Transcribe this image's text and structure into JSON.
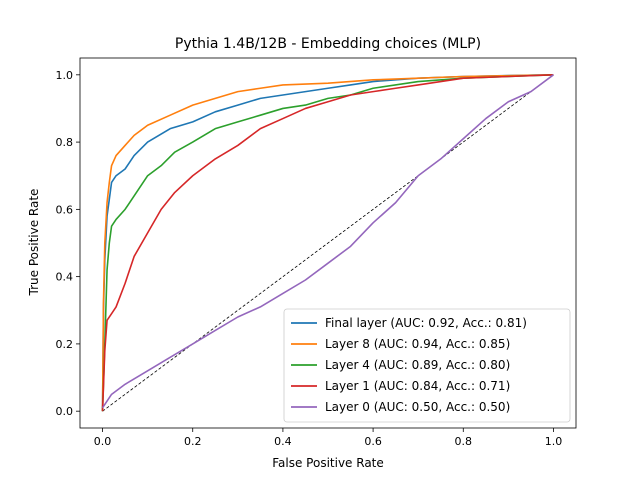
{
  "chart_data": {
    "type": "line",
    "title": "Pythia 1.4B/12B - Embedding choices (MLP)",
    "xlabel": "False Positive Rate",
    "ylabel": "True Positive Rate",
    "xlim": [
      -0.05,
      1.05
    ],
    "ylim": [
      -0.05,
      1.05
    ],
    "xticks": [
      0.0,
      0.2,
      0.4,
      0.6,
      0.8,
      1.0
    ],
    "yticks": [
      0.0,
      0.2,
      0.4,
      0.6,
      0.8,
      1.0
    ],
    "tick_labels": [
      "0.0",
      "0.2",
      "0.4",
      "0.6",
      "0.8",
      "1.0"
    ],
    "grid": false,
    "legend_position": "lower-right",
    "diagonal": {
      "x": [
        0,
        1
      ],
      "y": [
        0,
        1
      ],
      "color": "#000000",
      "style": "dashed"
    },
    "series": [
      {
        "name": "Final layer (AUC: 0.92, Acc.: 0.81)",
        "color": "#1f77b4",
        "x": [
          0,
          0.002,
          0.005,
          0.01,
          0.015,
          0.02,
          0.03,
          0.05,
          0.07,
          0.1,
          0.15,
          0.2,
          0.25,
          0.3,
          0.35,
          0.4,
          0.45,
          0.5,
          0.55,
          0.6,
          0.65,
          0.7,
          0.8,
          0.9,
          1.0
        ],
        "y": [
          0,
          0.3,
          0.45,
          0.58,
          0.63,
          0.68,
          0.7,
          0.72,
          0.76,
          0.8,
          0.84,
          0.86,
          0.89,
          0.91,
          0.93,
          0.94,
          0.95,
          0.96,
          0.97,
          0.98,
          0.985,
          0.99,
          0.995,
          0.998,
          1.0
        ]
      },
      {
        "name": "Layer 8 (AUC: 0.94, Acc.: 0.85)",
        "color": "#ff7f0e",
        "x": [
          0,
          0.002,
          0.005,
          0.01,
          0.015,
          0.02,
          0.03,
          0.05,
          0.07,
          0.1,
          0.15,
          0.2,
          0.25,
          0.3,
          0.35,
          0.4,
          0.5,
          0.6,
          0.7,
          0.8,
          1.0
        ],
        "y": [
          0,
          0.32,
          0.5,
          0.62,
          0.68,
          0.73,
          0.76,
          0.79,
          0.82,
          0.85,
          0.88,
          0.91,
          0.93,
          0.95,
          0.96,
          0.97,
          0.975,
          0.985,
          0.99,
          0.995,
          1.0
        ]
      },
      {
        "name": "Layer 4 (AUC: 0.89, Acc.: 0.80)",
        "color": "#2ca02c",
        "x": [
          0,
          0.005,
          0.01,
          0.015,
          0.02,
          0.03,
          0.05,
          0.07,
          0.1,
          0.13,
          0.16,
          0.2,
          0.25,
          0.3,
          0.35,
          0.4,
          0.45,
          0.5,
          0.55,
          0.6,
          0.7,
          0.8,
          0.9,
          1.0
        ],
        "y": [
          0,
          0.2,
          0.42,
          0.5,
          0.55,
          0.57,
          0.6,
          0.64,
          0.7,
          0.73,
          0.77,
          0.8,
          0.84,
          0.86,
          0.88,
          0.9,
          0.91,
          0.93,
          0.94,
          0.96,
          0.98,
          0.99,
          0.995,
          1.0
        ]
      },
      {
        "name": "Layer 1 (AUC: 0.84, Acc.: 0.71)",
        "color": "#d62728",
        "x": [
          0,
          0.005,
          0.01,
          0.02,
          0.03,
          0.05,
          0.07,
          0.1,
          0.13,
          0.16,
          0.2,
          0.25,
          0.3,
          0.35,
          0.4,
          0.45,
          0.5,
          0.55,
          0.6,
          0.65,
          0.7,
          0.8,
          0.9,
          1.0
        ],
        "y": [
          0,
          0.18,
          0.27,
          0.29,
          0.31,
          0.38,
          0.46,
          0.53,
          0.6,
          0.65,
          0.7,
          0.75,
          0.79,
          0.84,
          0.87,
          0.9,
          0.92,
          0.94,
          0.95,
          0.96,
          0.97,
          0.99,
          0.995,
          1.0
        ]
      },
      {
        "name": "Layer 0 (AUC: 0.50, Acc.: 0.50)",
        "color": "#9467bd",
        "x": [
          0,
          0.01,
          0.02,
          0.05,
          0.1,
          0.15,
          0.2,
          0.25,
          0.3,
          0.35,
          0.4,
          0.45,
          0.5,
          0.55,
          0.6,
          0.65,
          0.7,
          0.75,
          0.8,
          0.85,
          0.9,
          0.95,
          1.0
        ],
        "y": [
          0.01,
          0.03,
          0.05,
          0.08,
          0.12,
          0.16,
          0.2,
          0.24,
          0.28,
          0.31,
          0.35,
          0.39,
          0.44,
          0.49,
          0.56,
          0.62,
          0.7,
          0.75,
          0.81,
          0.87,
          0.92,
          0.95,
          1.0
        ]
      }
    ]
  }
}
